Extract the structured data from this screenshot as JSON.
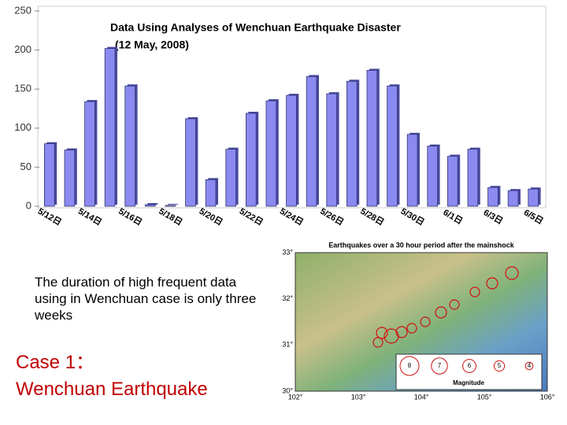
{
  "chart_data": {
    "type": "bar",
    "title": [
      "Data Using Analyses of Wenchuan Earthquake Disaster",
      "(12 May, 2008)"
    ],
    "categories": [
      "5/12日",
      null,
      "5/14日",
      null,
      "5/16日",
      null,
      "5/18日",
      null,
      "5/20日",
      null,
      "5/22日",
      null,
      "5/24日",
      null,
      "5/26日",
      null,
      "5/28日",
      null,
      "5/30日",
      null,
      "6/1日",
      null,
      "6/3日",
      null,
      "6/5日"
    ],
    "values": [
      80,
      72,
      134,
      202,
      154,
      2,
      1,
      112,
      34,
      73,
      119,
      135,
      142,
      166,
      144,
      160,
      174,
      154,
      92,
      77,
      64,
      73,
      24,
      20,
      22
    ],
    "color": "#8a8af0",
    "ylim": [
      0,
      250
    ],
    "yticks": [
      0,
      50,
      100,
      150,
      200,
      250
    ],
    "grid": false
  },
  "slide": {
    "caption": "The duration of high frequent data using in Wenchuan case is only three weeks",
    "case_title": [
      "Case 1：",
      "Wenchuan Earthquake"
    ]
  },
  "map": {
    "title": "Earthquakes over a 30 hour period after the mainshock",
    "lat_labels": [
      "33°",
      "32°",
      "31°",
      "30°"
    ],
    "lon_labels": [
      "102°",
      "103°",
      "104°",
      "105°",
      "106°"
    ],
    "legend_title": "Magnitude",
    "legend_items": [
      "8",
      "7",
      "6",
      "5",
      "4"
    ]
  }
}
